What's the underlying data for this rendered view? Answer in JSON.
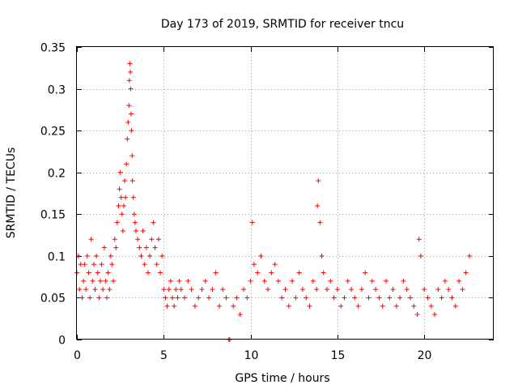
{
  "chart_data": {
    "type": "scatter",
    "title": "Day 173 of 2019, SRMTID for receiver tncu",
    "xlabel": "GPS time / hours",
    "ylabel": "SRMTID / TECUs",
    "xlim": [
      0,
      24
    ],
    "ylim": [
      0,
      0.35
    ],
    "xticks": [
      0,
      5,
      10,
      15,
      20
    ],
    "xtick_labels": [
      "0",
      "5",
      "10",
      "15",
      "20"
    ],
    "yticks": [
      0,
      0.05,
      0.1,
      0.15,
      0.2,
      0.25,
      0.3,
      0.35
    ],
    "ytick_labels": [
      "0",
      "0.05",
      "0.1",
      "0.15",
      "0.2",
      "0.25",
      "0.3",
      "0.35"
    ],
    "grid": true,
    "marker": "+",
    "color": "#ff0000",
    "series": [
      {
        "name": "SRMTID",
        "x": [
          0.0,
          0.08,
          0.15,
          0.22,
          0.3,
          0.38,
          0.45,
          0.52,
          0.6,
          0.68,
          0.75,
          0.82,
          0.9,
          0.98,
          1.05,
          1.12,
          1.2,
          1.28,
          1.35,
          1.42,
          1.5,
          1.58,
          1.65,
          1.72,
          1.8,
          1.88,
          1.95,
          2.02,
          2.1,
          2.18,
          2.25,
          2.32,
          2.4,
          2.45,
          2.5,
          2.55,
          2.6,
          2.65,
          2.7,
          2.75,
          2.8,
          2.85,
          2.9,
          2.95,
          3.0,
          3.02,
          3.05,
          3.08,
          3.1,
          3.12,
          3.15,
          3.18,
          3.2,
          3.25,
          3.3,
          3.35,
          3.4,
          3.5,
          3.6,
          3.7,
          3.8,
          3.9,
          4.0,
          4.1,
          4.2,
          4.3,
          4.4,
          4.5,
          4.6,
          4.7,
          4.8,
          4.9,
          5.0,
          5.1,
          5.2,
          5.3,
          5.4,
          5.5,
          5.6,
          5.7,
          5.8,
          5.9,
          6.0,
          6.2,
          6.4,
          6.6,
          6.8,
          7.0,
          7.2,
          7.4,
          7.6,
          7.8,
          8.0,
          8.2,
          8.4,
          8.6,
          8.75,
          8.8,
          9.0,
          9.2,
          9.4,
          9.6,
          9.8,
          10.0,
          10.1,
          10.2,
          10.4,
          10.6,
          10.8,
          11.0,
          11.2,
          11.4,
          11.6,
          11.8,
          12.0,
          12.2,
          12.4,
          12.6,
          12.8,
          13.0,
          13.2,
          13.4,
          13.6,
          13.8,
          13.85,
          13.9,
          14.0,
          14.1,
          14.2,
          14.4,
          14.6,
          14.8,
          15.0,
          15.2,
          15.4,
          15.6,
          15.8,
          16.0,
          16.2,
          16.4,
          16.6,
          16.8,
          17.0,
          17.2,
          17.4,
          17.6,
          17.8,
          18.0,
          18.2,
          18.4,
          18.6,
          18.8,
          19.0,
          19.2,
          19.4,
          19.6,
          19.7,
          19.8,
          20.0,
          20.2,
          20.4,
          20.6,
          20.8,
          21.0,
          21.2,
          21.4,
          21.6,
          21.8,
          22.0,
          22.2,
          22.4,
          22.6
        ],
        "y": [
          0.08,
          0.1,
          0.06,
          0.09,
          0.05,
          0.07,
          0.09,
          0.06,
          0.1,
          0.08,
          0.05,
          0.12,
          0.07,
          0.09,
          0.06,
          0.1,
          0.08,
          0.05,
          0.07,
          0.09,
          0.06,
          0.11,
          0.07,
          0.05,
          0.08,
          0.06,
          0.1,
          0.09,
          0.07,
          0.12,
          0.11,
          0.14,
          0.16,
          0.18,
          0.2,
          0.17,
          0.15,
          0.13,
          0.16,
          0.19,
          0.17,
          0.21,
          0.24,
          0.26,
          0.28,
          0.31,
          0.33,
          0.32,
          0.3,
          0.27,
          0.25,
          0.22,
          0.19,
          0.17,
          0.15,
          0.14,
          0.13,
          0.12,
          0.11,
          0.1,
          0.13,
          0.09,
          0.11,
          0.08,
          0.1,
          0.12,
          0.14,
          0.11,
          0.09,
          0.12,
          0.08,
          0.1,
          0.06,
          0.05,
          0.04,
          0.06,
          0.07,
          0.05,
          0.04,
          0.06,
          0.05,
          0.07,
          0.06,
          0.05,
          0.07,
          0.06,
          0.04,
          0.05,
          0.06,
          0.07,
          0.05,
          0.06,
          0.08,
          0.04,
          0.06,
          0.05,
          0.0,
          0.0,
          0.04,
          0.05,
          0.03,
          0.06,
          0.05,
          0.07,
          0.14,
          0.09,
          0.08,
          0.1,
          0.07,
          0.06,
          0.08,
          0.09,
          0.07,
          0.05,
          0.06,
          0.04,
          0.07,
          0.05,
          0.08,
          0.06,
          0.05,
          0.04,
          0.07,
          0.06,
          0.16,
          0.19,
          0.14,
          0.1,
          0.08,
          0.06,
          0.07,
          0.05,
          0.06,
          0.04,
          0.05,
          0.07,
          0.06,
          0.05,
          0.04,
          0.06,
          0.08,
          0.05,
          0.07,
          0.06,
          0.05,
          0.04,
          0.07,
          0.05,
          0.06,
          0.04,
          0.05,
          0.07,
          0.06,
          0.05,
          0.04,
          0.03,
          0.12,
          0.1,
          0.06,
          0.05,
          0.04,
          0.03,
          0.06,
          0.05,
          0.07,
          0.06,
          0.05,
          0.04,
          0.07,
          0.06,
          0.08,
          0.1
        ]
      }
    ]
  }
}
